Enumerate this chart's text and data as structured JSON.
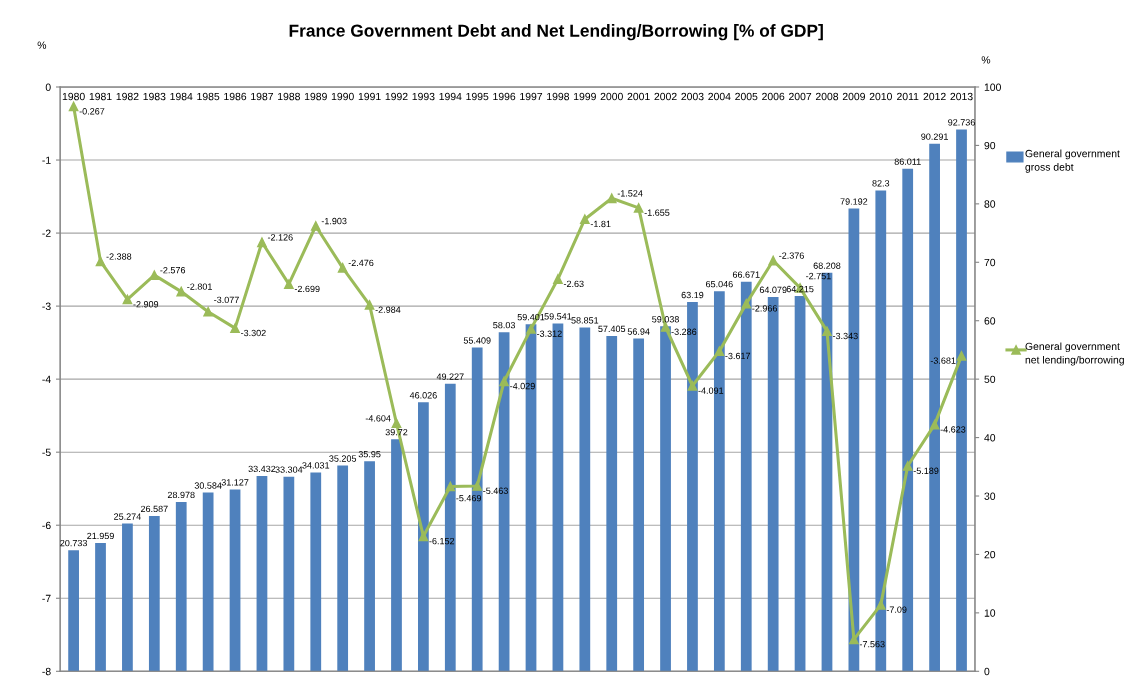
{
  "chart_data": {
    "type": "bar",
    "title": "France Government Debt and Net Lending/Borrowing [% of GDP]",
    "ylabel": "%",
    "y2label": "%",
    "categories": [
      "1980",
      "1981",
      "1982",
      "1983",
      "1984",
      "1985",
      "1986",
      "1987",
      "1988",
      "1989",
      "1990",
      "1991",
      "1992",
      "1993",
      "1994",
      "1995",
      "1996",
      "1997",
      "1998",
      "1999",
      "2000",
      "2001",
      "2002",
      "2003",
      "2004",
      "2005",
      "2006",
      "2007",
      "2008",
      "2009",
      "2010",
      "2011",
      "2012",
      "2013"
    ],
    "series": [
      {
        "name": "General government gross debt",
        "axis": "y2",
        "color": "#4f81bd",
        "values": [
          20.733,
          21.959,
          25.274,
          26.587,
          28.978,
          30.584,
          31.127,
          33.432,
          33.304,
          34.031,
          35.205,
          35.95,
          39.72,
          46.026,
          49.227,
          55.409,
          58.03,
          59.401,
          59.541,
          58.851,
          57.405,
          56.94,
          59.038,
          63.19,
          65.046,
          66.671,
          64.079,
          64.215,
          68.208,
          79.192,
          82.3,
          86.011,
          90.291,
          92.736
        ]
      },
      {
        "name": "General government net lending/borrowing",
        "type": "line",
        "axis": "y",
        "color": "#9bbb59",
        "values": [
          -0.267,
          -2.388,
          -2.909,
          -2.576,
          -2.801,
          -3.077,
          -3.302,
          -2.126,
          -2.699,
          -1.903,
          -2.476,
          -2.984,
          -4.604,
          -6.152,
          -5.469,
          -5.463,
          -4.029,
          -3.312,
          -2.63,
          -1.81,
          -1.524,
          -1.655,
          -3.286,
          -4.091,
          -3.617,
          -2.966,
          -2.376,
          -2.751,
          -3.343,
          -7.563,
          -7.09,
          -5.189,
          -4.623,
          -3.681
        ]
      }
    ],
    "ylim": [
      -8,
      0
    ],
    "yticks": [
      -8,
      -7,
      -6,
      -5,
      -4,
      -3,
      -2,
      -1,
      0
    ],
    "y2lim": [
      0,
      100
    ],
    "y2ticks": [
      0,
      10,
      20,
      30,
      40,
      50,
      60,
      70,
      80,
      90,
      100
    ],
    "grid": "y",
    "legend": "right",
    "marker": "triangle",
    "data_labels": true
  }
}
